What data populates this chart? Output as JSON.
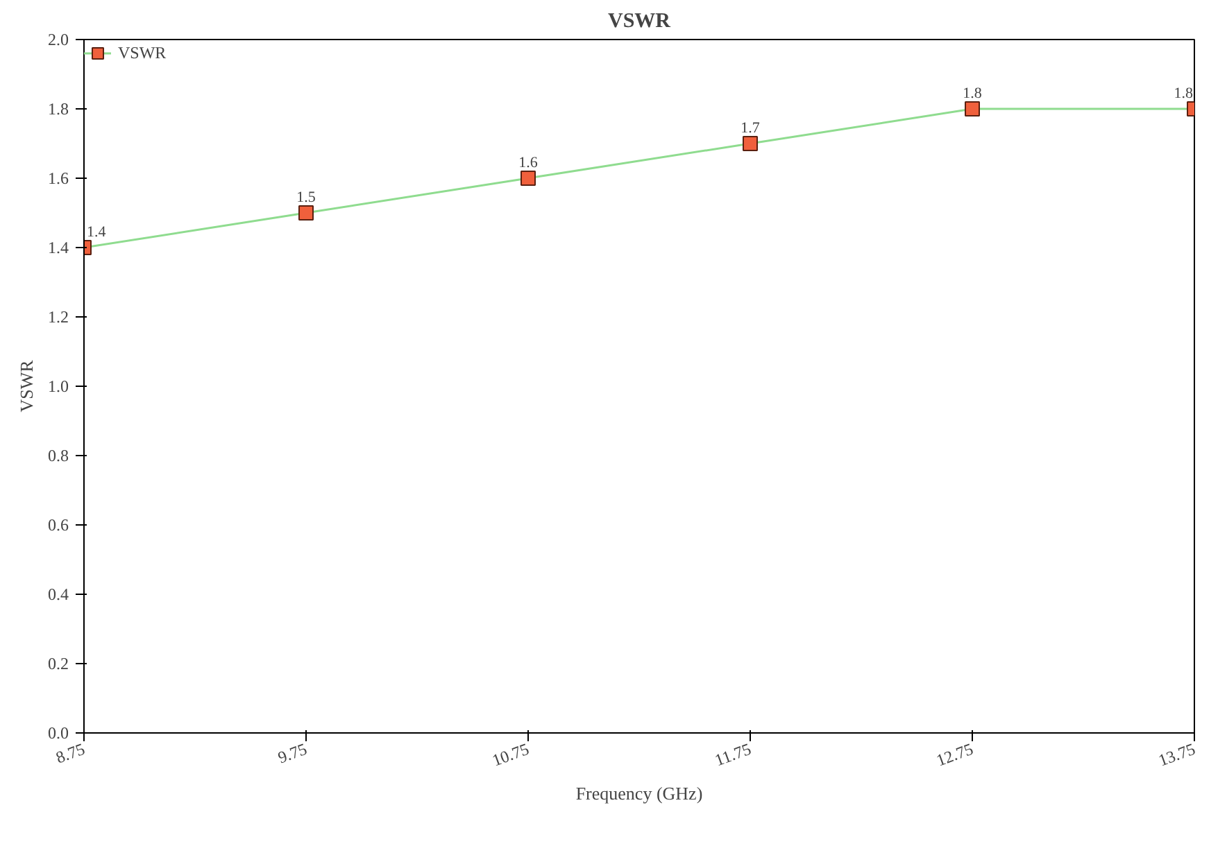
{
  "chart_data": {
    "type": "line",
    "title": "VSWR",
    "xlabel": "Frequency (GHz)",
    "ylabel": "VSWR",
    "x": [
      8.75,
      9.75,
      10.75,
      11.75,
      12.75,
      13.75
    ],
    "series": [
      {
        "name": "VSWR",
        "color": "#8fdc8f",
        "colors": [
          "#f0603c",
          "#f0603c",
          "#f0603c",
          "#f0603c",
          "#f0603c",
          "#f0603c"
        ],
        "values": [
          1.4,
          1.5,
          1.6,
          1.7,
          1.8,
          1.8
        ]
      }
    ],
    "xlim": [
      8.75,
      13.75
    ],
    "xticks": [
      8.75,
      9.75,
      10.75,
      11.75,
      12.75,
      13.75
    ],
    "ylim": [
      0,
      2
    ],
    "yticks": [
      {
        "value": 0,
        "label": "0.0"
      },
      0.2,
      0.4,
      0.6,
      0.8,
      {
        "value": 1,
        "label": "1.0"
      },
      1.2,
      1.4,
      1.6,
      1.8,
      {
        "value": 2,
        "label": "2.0"
      }
    ],
    "marker": "square",
    "line_style": "solid",
    "grid": false,
    "legend": "top left",
    "data_labels": true
  }
}
